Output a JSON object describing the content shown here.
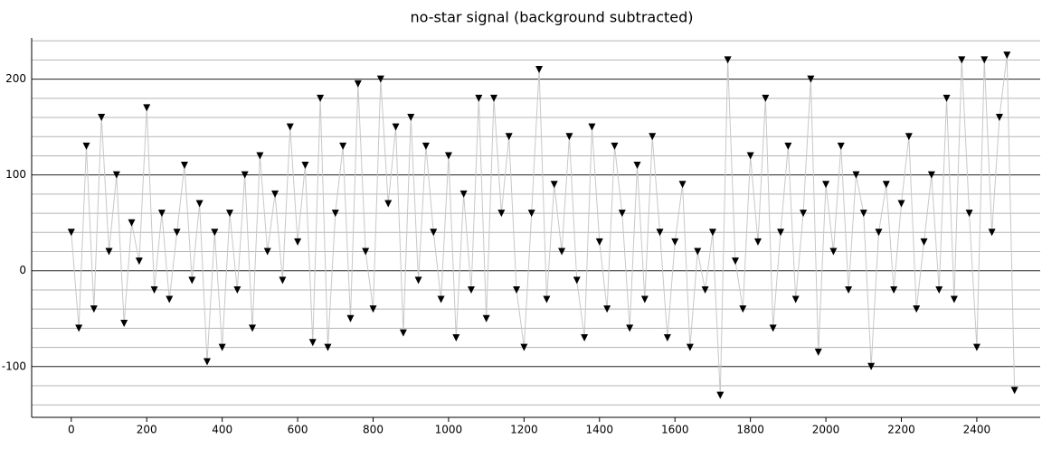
{
  "chart_data": {
    "type": "scatter-line",
    "title": "no-star signal (background subtracted)",
    "x": [
      0,
      20,
      40,
      60,
      80,
      100,
      120,
      140,
      160,
      180,
      200,
      220,
      240,
      260,
      280,
      300,
      320,
      340,
      360,
      380,
      400,
      420,
      440,
      460,
      480,
      500,
      520,
      540,
      560,
      580,
      600,
      620,
      640,
      660,
      680,
      700,
      720,
      740,
      760,
      780,
      800,
      820,
      840,
      860,
      880,
      900,
      920,
      940,
      960,
      980,
      1000,
      1020,
      1040,
      1060,
      1080,
      1100,
      1120,
      1140,
      1160,
      1180,
      1200,
      1220,
      1240,
      1260,
      1280,
      1300,
      1320,
      1340,
      1360,
      1380,
      1400,
      1420,
      1440,
      1460,
      1480,
      1500,
      1520,
      1540,
      1560,
      1580,
      1600,
      1620,
      1640,
      1660,
      1680,
      1700,
      1720,
      1740,
      1760,
      1780,
      1800,
      1820,
      1840,
      1860,
      1880,
      1900,
      1920,
      1940,
      1960,
      1980,
      2000,
      2020,
      2040,
      2060,
      2080,
      2100,
      2120,
      2140,
      2160,
      2180,
      2200,
      2220,
      2240,
      2260,
      2280,
      2300,
      2320,
      2340,
      2360,
      2380,
      2400,
      2420,
      2440,
      2460,
      2480,
      2500
    ],
    "series": [
      {
        "color": "#000000",
        "line_color": "#c8c8c8",
        "values": [
          40,
          -60,
          130,
          -40,
          160,
          20,
          100,
          -55,
          50,
          10,
          170,
          -20,
          60,
          -30,
          40,
          110,
          -10,
          70,
          -95,
          40,
          -80,
          60,
          -20,
          100,
          -60,
          120,
          20,
          80,
          -10,
          150,
          30,
          110,
          -75,
          180,
          -80,
          60,
          130,
          -50,
          195,
          20,
          -40,
          200,
          70,
          150,
          -65,
          160,
          -10,
          130,
          40,
          -30,
          120,
          -70,
          80,
          -20,
          180,
          -50,
          180,
          60,
          140,
          -20,
          -80,
          60,
          210,
          -30,
          90,
          20,
          140,
          -10,
          -70,
          150,
          30,
          -40,
          130,
          60,
          -60,
          110,
          -30,
          140,
          40,
          -70,
          30,
          90,
          -80,
          20,
          -20,
          40,
          -130,
          220,
          10,
          -40,
          120,
          30,
          180,
          -60,
          40,
          130,
          -30,
          60,
          200,
          -85,
          90,
          20,
          130,
          -20,
          100,
          60,
          -100,
          40,
          90,
          -20,
          70,
          140,
          -40,
          30,
          100,
          -20,
          180,
          -30,
          220,
          60,
          -80,
          220,
          40,
          160,
          225,
          -125
        ]
      }
    ],
    "xlim": [
      -105,
      2568
    ],
    "ylim": [
      -153,
      243
    ],
    "xticks": [
      0,
      200,
      400,
      600,
      800,
      1000,
      1200,
      1400,
      1600,
      1800,
      2000,
      2200,
      2400
    ],
    "yticks": [
      -100,
      0,
      100,
      200
    ],
    "yminorticks": [
      -140,
      -120,
      -80,
      -60,
      -40,
      -20,
      20,
      40,
      60,
      80,
      120,
      140,
      160,
      180,
      220,
      240
    ],
    "grid": true
  }
}
